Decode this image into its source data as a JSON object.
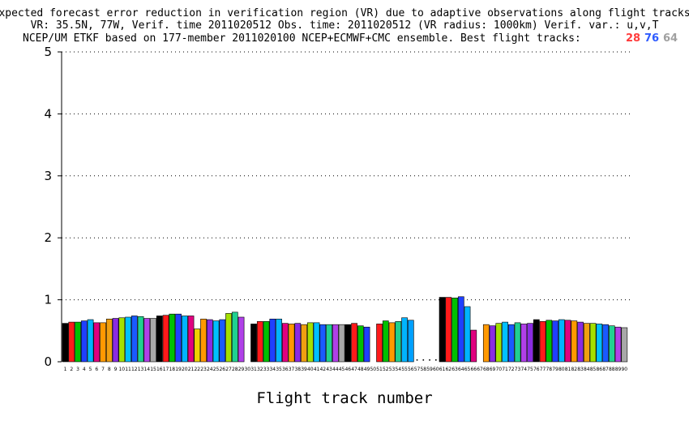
{
  "title": {
    "line1": "Expected forecast error reduction in verification region (VR) due to adaptive observations along flight tracks.",
    "line2": "VR: 35.5N, 77W, Verif. time 2011020512 Obs. time: 2011020512 (VR radius: 1000km)  Verif. var.: u,v,T",
    "line3": "NCEP/UM ETKF based on 177-member 2011020100 NCEP+ECMWF+CMC ensemble. Best flight tracks:",
    "best": [
      {
        "value": "28",
        "color": "#ff3b3b"
      },
      {
        "value": "76",
        "color": "#2e5bff"
      },
      {
        "value": "64",
        "color": "#a0a0a0"
      }
    ]
  },
  "chart_data": {
    "type": "bar",
    "title": "Expected forecast error reduction in verification region (VR) due to adaptive observations along flight tracks.",
    "xlabel": "Flight track number",
    "ylabel": "",
    "ylim": [
      0,
      5
    ],
    "yticks": [
      0,
      1,
      2,
      3,
      4,
      5
    ],
    "grid": true,
    "categories": [
      "1",
      "2",
      "3",
      "4",
      "5",
      "6",
      "7",
      "8",
      "9",
      "10",
      "11",
      "12",
      "13",
      "14",
      "15",
      "16",
      "17",
      "18",
      "19",
      "20",
      "21",
      "22",
      "23",
      "24",
      "25",
      "26",
      "27",
      "28",
      "29",
      "30",
      "31",
      "32",
      "33",
      "34",
      "35",
      "36",
      "37",
      "38",
      "39",
      "40",
      "41",
      "42",
      "43",
      "44",
      "45",
      "46",
      "47",
      "48",
      "49",
      "50",
      "51",
      "52",
      "53",
      "54",
      "55",
      "56",
      "57",
      "58",
      "59",
      "60",
      "61",
      "62",
      "63",
      "64",
      "65",
      "66",
      "67",
      "68",
      "69",
      "70",
      "71",
      "72",
      "73",
      "74",
      "75",
      "76",
      "77",
      "78",
      "79",
      "80",
      "81",
      "82",
      "83",
      "84",
      "85",
      "86",
      "87",
      "88",
      "89",
      "90"
    ],
    "values": [
      0.62,
      0.64,
      0.64,
      0.66,
      0.68,
      0.63,
      0.63,
      0.69,
      0.7,
      0.71,
      0.72,
      0.74,
      0.73,
      0.7,
      0.7,
      0.74,
      0.75,
      0.77,
      0.77,
      0.74,
      0.74,
      0.53,
      0.69,
      0.68,
      0.66,
      0.68,
      0.78,
      0.8,
      0.72,
      null,
      0.61,
      0.65,
      0.65,
      0.69,
      0.69,
      0.62,
      0.61,
      0.62,
      0.6,
      0.63,
      0.63,
      0.6,
      0.6,
      0.6,
      0.6,
      0.6,
      0.62,
      0.58,
      0.56,
      null,
      0.61,
      0.66,
      0.63,
      0.65,
      0.71,
      0.67,
      null,
      null,
      null,
      null,
      1.04,
      1.04,
      1.03,
      1.05,
      0.89,
      0.51,
      null,
      0.6,
      0.58,
      0.62,
      0.64,
      0.6,
      0.63,
      0.61,
      0.62,
      0.68,
      0.65,
      0.67,
      0.66,
      0.68,
      0.67,
      0.66,
      0.64,
      0.62,
      0.62,
      0.61,
      0.6,
      0.58,
      0.56,
      0.55
    ],
    "colors": [
      "#000000",
      "#ff1a1a",
      "#00c000",
      "#1f3fff",
      "#00b4ff",
      "#e0007f",
      "#ff9900",
      "#f0a010",
      "#8a2be2",
      "#a4e000",
      "#00c0ff",
      "#1a5aff",
      "#20d090",
      "#b040e8",
      "#a8a8a8",
      "#000000",
      "#ff1a1a",
      "#00c000",
      "#1f3fff",
      "#00b4ff",
      "#e0007f",
      "#f0d000",
      "#ff9900",
      "#8a2be2",
      "#00c0ff",
      "#1a5aff",
      "#a4e000",
      "#20d090",
      "#b040e8",
      "#ffffff",
      "#000000",
      "#ff1a1a",
      "#00c000",
      "#1f3fff",
      "#00b4ff",
      "#e0007f",
      "#ff9900",
      "#8a2be2",
      "#f0a010",
      "#a4e000",
      "#00c0ff",
      "#1a5aff",
      "#20d090",
      "#b040e8",
      "#a8a8a8",
      "#000000",
      "#ff1a1a",
      "#00c000",
      "#1f3fff",
      "#ffffff",
      "#ff1a1a",
      "#00c000",
      "#ff9900",
      "#20d090",
      "#00b4ff",
      "#00a0ff",
      "#ffffff",
      "#ffffff",
      "#ffffff",
      "#ffffff",
      "#000000",
      "#ff1a1a",
      "#00c000",
      "#1f3fff",
      "#00b4ff",
      "#e0007f",
      "#ffffff",
      "#ff9900",
      "#8a2be2",
      "#a4e000",
      "#00c0ff",
      "#1a5aff",
      "#20d090",
      "#b040e8",
      "#8a2be2",
      "#000000",
      "#ff1a1a",
      "#00c000",
      "#1f3fff",
      "#00b4ff",
      "#e0007f",
      "#ff9900",
      "#8a2be2",
      "#f0a010",
      "#a4e000",
      "#00c0ff",
      "#1a5aff",
      "#20d090",
      "#b040e8",
      "#a8a8a8"
    ]
  }
}
